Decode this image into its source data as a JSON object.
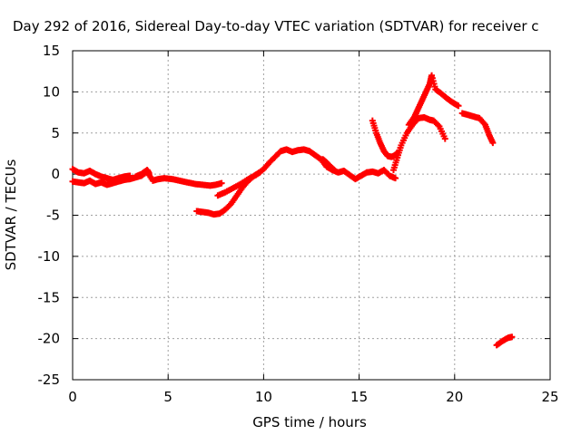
{
  "chart_data": {
    "type": "scatter",
    "title": "Day 292 of 2016, Sidereal Day-to-day VTEC variation (SDTVAR) for receiver c",
    "xlabel": "GPS time / hours",
    "ylabel": "SDTVAR / TECUs",
    "xlim": [
      0,
      25
    ],
    "ylim": [
      -25,
      15
    ],
    "xticks": [
      0,
      5,
      10,
      15,
      20,
      25
    ],
    "yticks": [
      15,
      10,
      5,
      0,
      -5,
      -10,
      -15,
      -20,
      -25
    ],
    "grid": true,
    "marker": "plus",
    "color": "#ff0000",
    "series": [
      {
        "x": [
          0.0,
          0.3,
          0.6,
          0.9,
          1.2,
          1.5,
          1.8,
          2.1,
          2.4,
          2.7,
          3.0
        ],
        "y": [
          0.6,
          0.2,
          0.1,
          0.4,
          0.0,
          -0.3,
          -0.5,
          -0.7,
          -0.5,
          -0.3,
          -0.2
        ]
      },
      {
        "x": [
          0.0,
          0.3,
          0.6,
          0.9,
          1.2,
          1.5,
          1.8,
          2.1,
          2.4,
          2.7,
          3.0,
          3.3,
          3.6,
          3.9,
          4.2,
          4.5,
          4.8,
          5.2,
          5.6,
          6.0,
          6.4,
          6.8,
          7.2,
          7.5,
          7.8
        ],
        "y": [
          -0.9,
          -1.0,
          -1.1,
          -0.8,
          -1.2,
          -1.0,
          -1.3,
          -1.1,
          -0.9,
          -0.7,
          -0.6,
          -0.4,
          -0.2,
          0.3,
          -0.8,
          -0.6,
          -0.5,
          -0.6,
          -0.8,
          -1.0,
          -1.2,
          -1.3,
          -1.4,
          -1.3,
          -1.1
        ]
      },
      {
        "x": [
          3.3,
          3.6,
          3.9,
          4.0
        ],
        "y": [
          -0.3,
          0.0,
          0.5,
          0.1
        ]
      },
      {
        "x": [
          6.5,
          6.8,
          7.1,
          7.4,
          7.7,
          8.0,
          8.3,
          8.6,
          8.9,
          9.2,
          9.5,
          9.8
        ],
        "y": [
          -4.5,
          -4.6,
          -4.7,
          -4.9,
          -4.8,
          -4.3,
          -3.6,
          -2.6,
          -1.6,
          -0.8,
          -0.2,
          0.2
        ]
      },
      {
        "x": [
          7.6,
          8.0,
          8.4,
          8.8,
          9.2,
          9.6,
          10.0,
          10.3,
          10.6,
          10.9,
          11.2,
          11.5,
          11.8,
          12.1,
          12.4,
          12.7,
          13.0,
          13.3,
          13.6,
          13.9,
          14.2,
          14.5,
          14.8,
          15.1,
          15.4,
          15.7,
          16.0,
          16.3,
          16.6,
          16.9
        ],
        "y": [
          -2.6,
          -2.2,
          -1.7,
          -1.2,
          -0.6,
          -0.1,
          0.6,
          1.4,
          2.1,
          2.8,
          3.0,
          2.7,
          2.9,
          3.0,
          2.8,
          2.3,
          1.8,
          0.9,
          0.5,
          0.2,
          0.4,
          -0.1,
          -0.6,
          -0.2,
          0.2,
          0.3,
          0.1,
          0.5,
          -0.2,
          -0.5
        ]
      },
      {
        "x": [
          13.1,
          13.3,
          13.5,
          13.7
        ],
        "y": [
          1.8,
          1.4,
          0.9,
          0.5
        ]
      },
      {
        "x": [
          15.7,
          15.9,
          16.1,
          16.3,
          16.5,
          16.7,
          16.9,
          17.0
        ],
        "y": [
          6.5,
          5.0,
          3.8,
          2.8,
          2.2,
          2.1,
          2.3,
          2.6
        ]
      },
      {
        "x": [
          16.8,
          17.0,
          17.2,
          17.5,
          17.8,
          18.1,
          18.4,
          18.7,
          18.9,
          19.2,
          19.5
        ],
        "y": [
          0.5,
          2.0,
          3.5,
          5.0,
          6.0,
          6.8,
          6.9,
          6.6,
          6.5,
          5.8,
          4.3
        ]
      },
      {
        "x": [
          17.6,
          17.9,
          18.1,
          18.3,
          18.5,
          18.7,
          18.8,
          19.0,
          19.3,
          19.6,
          19.9,
          20.2
        ],
        "y": [
          6.0,
          7.0,
          8.0,
          9.0,
          10.0,
          11.0,
          12.0,
          10.3,
          9.8,
          9.2,
          8.7,
          8.3
        ]
      },
      {
        "x": [
          20.4,
          20.7,
          21.0,
          21.3,
          21.6,
          21.8,
          22.0
        ],
        "y": [
          7.4,
          7.2,
          7.0,
          6.8,
          6.0,
          4.8,
          3.8
        ]
      },
      {
        "x": [
          22.2,
          22.5,
          22.8,
          23.0
        ],
        "y": [
          -20.8,
          -20.3,
          -19.9,
          -19.8
        ]
      }
    ]
  }
}
